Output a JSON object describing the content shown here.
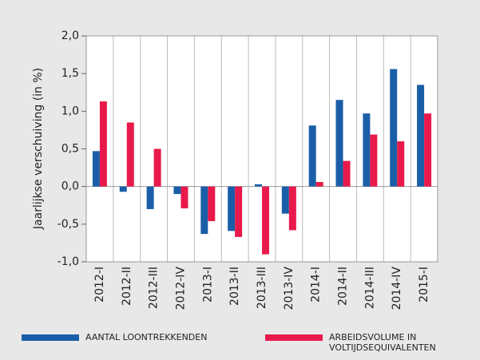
{
  "chart_data": {
    "type": "bar",
    "y_label": "Jaarlijkse verschuiving (in %)",
    "categories": [
      "2012-I",
      "2012-II",
      "2012-III",
      "2012-IV",
      "2013-I",
      "2013-II",
      "2013-III",
      "2013-IV",
      "2014-I",
      "2014-II",
      "2014-III",
      "2014-IV",
      "2015-I"
    ],
    "series": [
      {
        "name": "AANTAL LOONTREKKENDEN",
        "color": "#1b5ea8",
        "values": [
          0.47,
          -0.07,
          -0.3,
          -0.1,
          -0.63,
          -0.59,
          0.03,
          -0.36,
          0.81,
          1.15,
          0.97,
          1.56,
          1.35
        ]
      },
      {
        "name": "ARBEIDSVOLUME IN VOLTIJDSEQUIVALENTEN",
        "color": "#e8194b",
        "values": [
          1.13,
          0.85,
          0.5,
          -0.29,
          -0.46,
          -0.67,
          -0.9,
          -0.58,
          0.06,
          0.34,
          0.69,
          0.6,
          0.97
        ]
      }
    ],
    "ylim": [
      -1,
      2
    ],
    "yticks": [
      {
        "value": -1,
        "label": "-1,0"
      },
      {
        "value": -0.5,
        "label": "-0,5"
      },
      {
        "value": 0,
        "label": "0,0"
      },
      {
        "value": 0.5,
        "label": "0,5"
      },
      {
        "value": 1,
        "label": "1,0"
      },
      {
        "value": 1.5,
        "label": "1,5"
      },
      {
        "value": 2,
        "label": "2,0"
      }
    ],
    "legend": "bottom"
  }
}
